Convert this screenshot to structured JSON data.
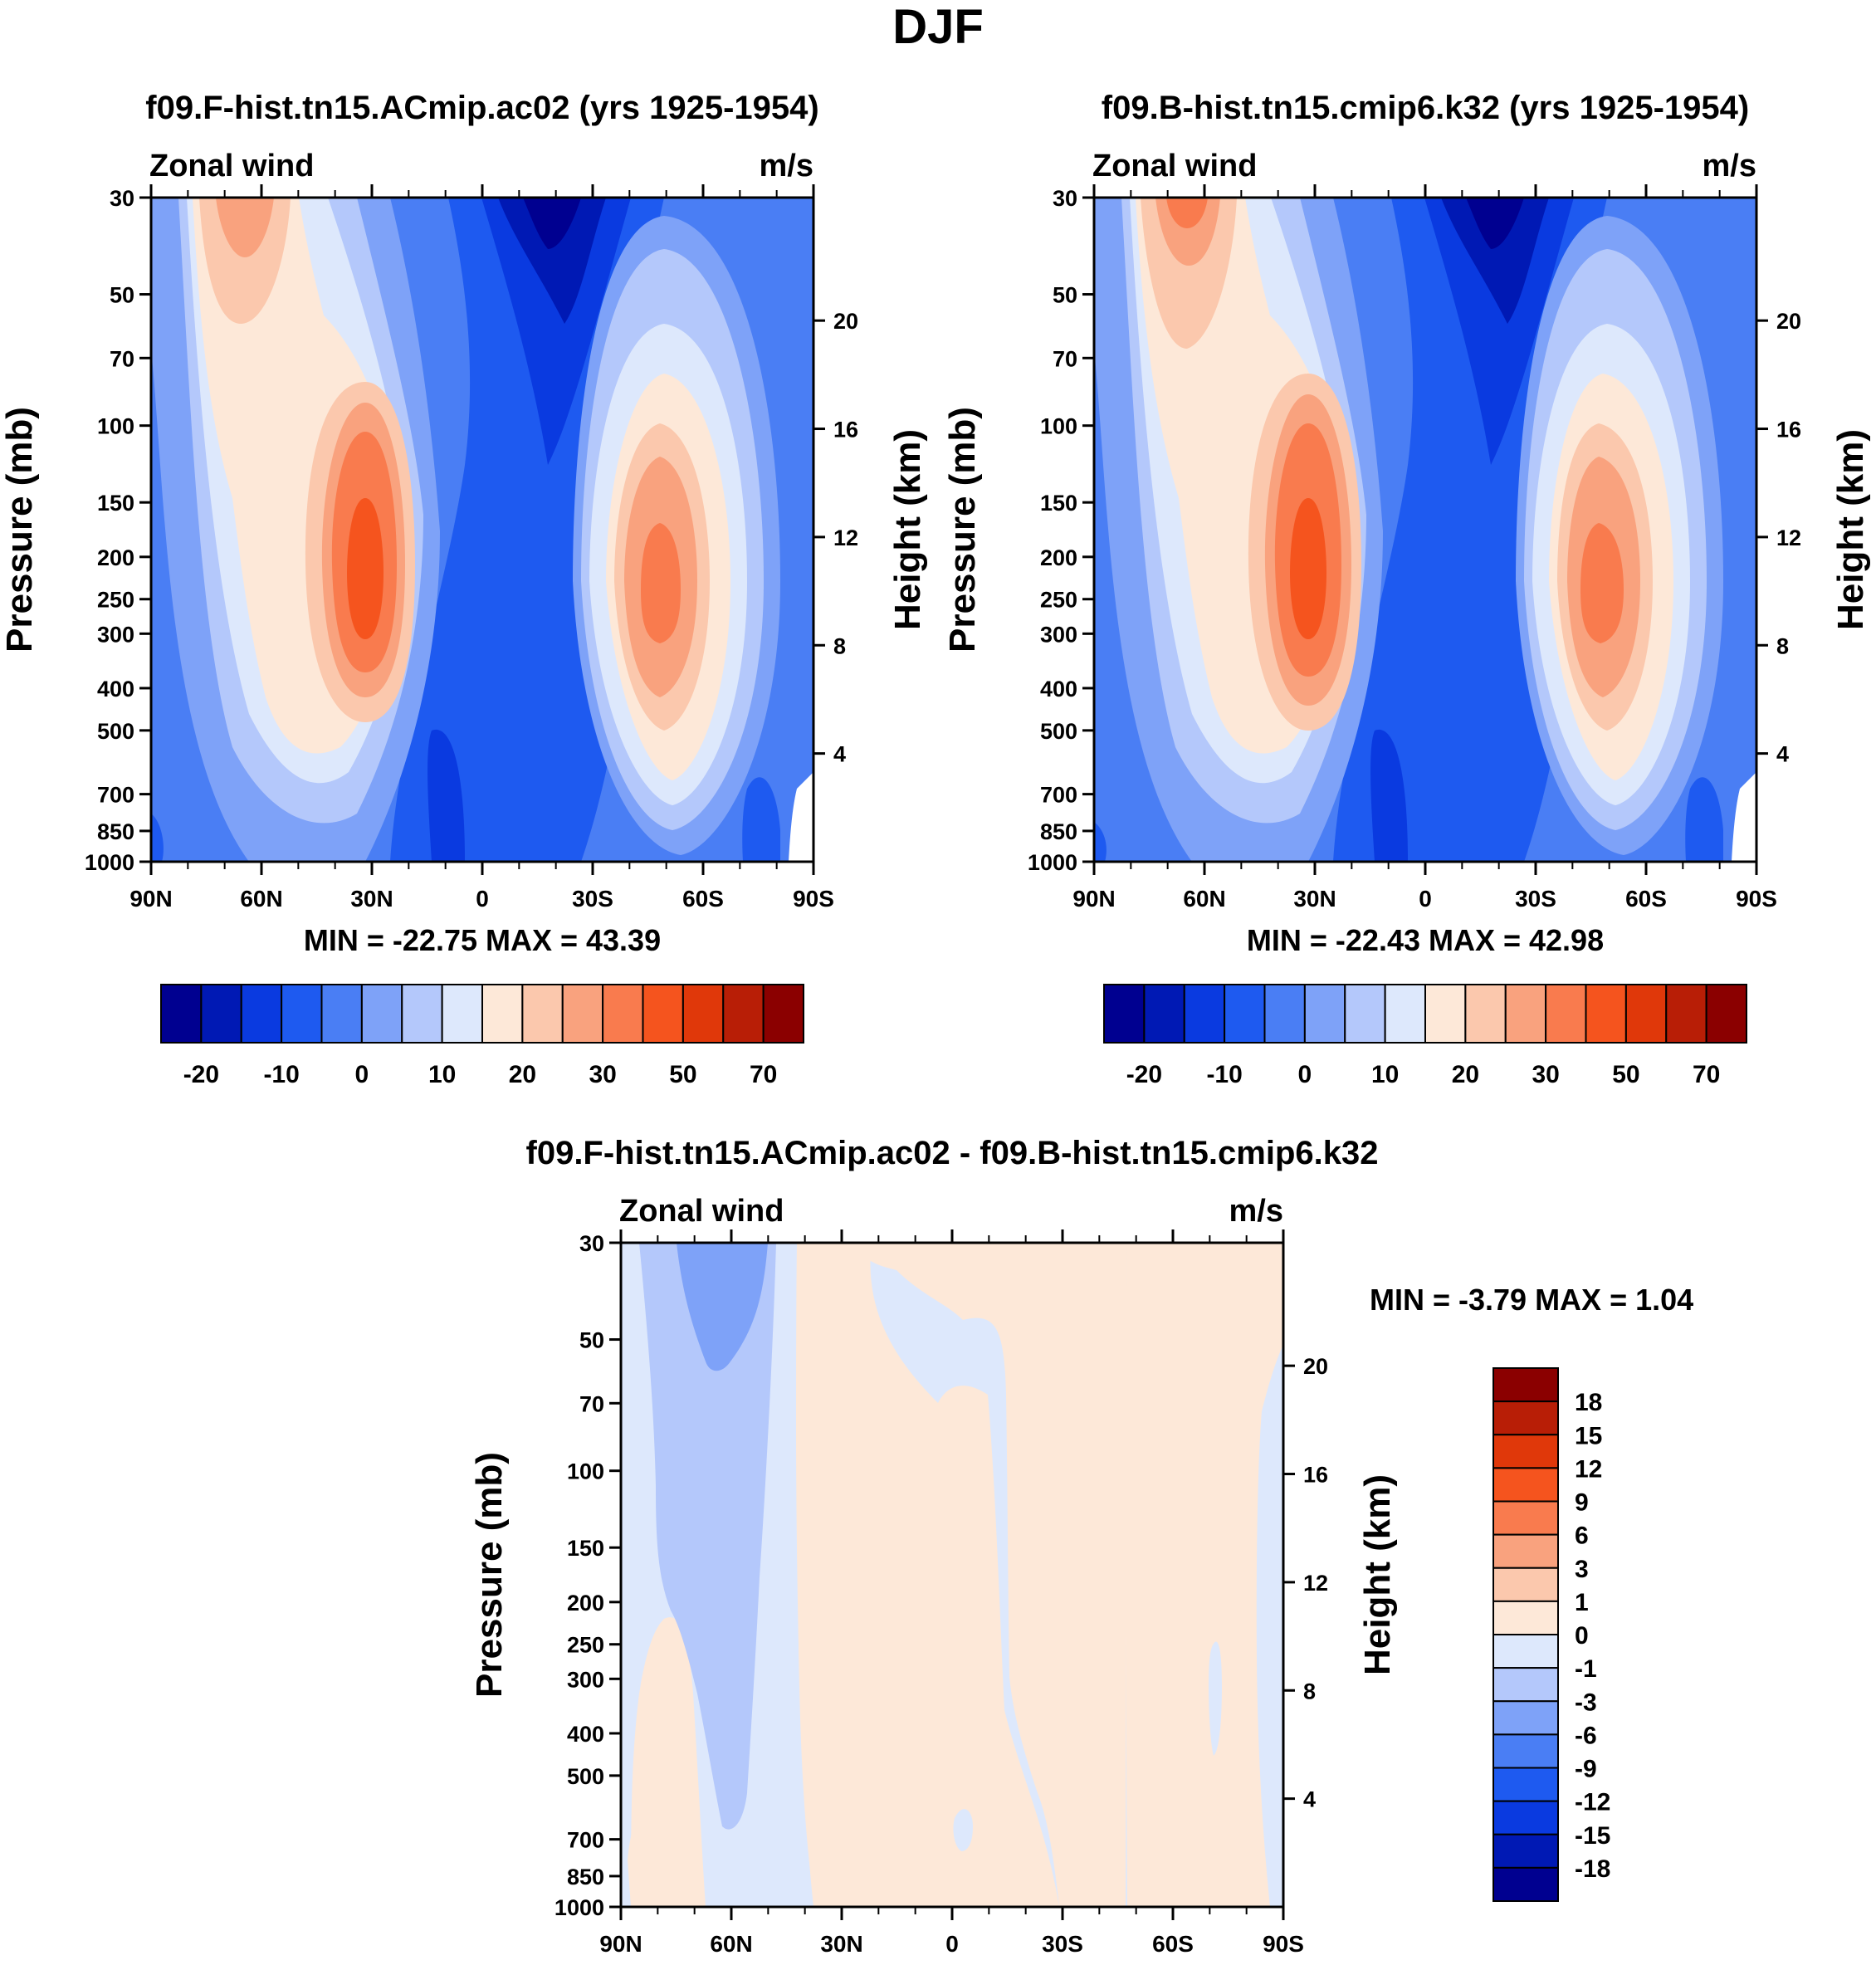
{
  "page_title": "DJF",
  "colors": {
    "main_levels": [
      "#000090",
      "#0019b4",
      "#0a3ae0",
      "#1e5af0",
      "#4a7ef4",
      "#7ea2f8",
      "#b4c8fb",
      "#dde8fc",
      "#fde8d8",
      "#fbc8ad",
      "#f9a27e",
      "#f97b4e",
      "#f5541e",
      "#e0380a",
      "#b81e06",
      "#8b0000"
    ],
    "diff_levels": [
      "#000090",
      "#0019b4",
      "#0a3ae0",
      "#1e5af0",
      "#4a7ef4",
      "#7ea2f8",
      "#b4c8fb",
      "#dde8fc",
      "#fde8d8",
      "#fbc8ad",
      "#f9a27e",
      "#f97b4e",
      "#f5541e",
      "#e0380a",
      "#b81e06",
      "#8b0000"
    ]
  },
  "panels": {
    "left": {
      "title": "f09.F-hist.tn15.ACmip.ac02 (yrs 1925-1954)",
      "left_label": "Zonal wind",
      "right_label": "m/s",
      "y_title": "Pressure (mb)",
      "y2_title": "Height (km)",
      "stats": "MIN = -22.75  MAX =  43.39"
    },
    "right": {
      "title": "f09.B-hist.tn15.cmip6.k32 (yrs 1925-1954)",
      "left_label": "Zonal wind",
      "right_label": "m/s",
      "y_title": "Pressure (mb)",
      "y2_title": "Height (km)",
      "stats": "MIN = -22.43  MAX =  42.98"
    },
    "diff": {
      "title": "f09.F-hist.tn15.ACmip.ac02 - f09.B-hist.tn15.cmip6.k32",
      "left_label": "Zonal wind",
      "right_label": "m/s",
      "y_title": "Pressure (mb)",
      "y2_title": "Height (km)",
      "stats": "MIN =  -3.79  MAX =   1.04"
    }
  },
  "chart_data": [
    {
      "type": "heatmap",
      "title": "f09.F-hist.tn15.ACmip.ac02 (yrs 1925-1954)",
      "variable": "Zonal wind",
      "units": "m/s",
      "xlabel": "",
      "ylabel": "Pressure (mb)",
      "y2label": "Height (km)",
      "x_ticks": [
        "90N",
        "60N",
        "30N",
        "0",
        "30S",
        "60S",
        "90S"
      ],
      "y_ticks": [
        "30",
        "50",
        "70",
        "100",
        "150",
        "200",
        "250",
        "300",
        "400",
        "500",
        "700",
        "850",
        "1000"
      ],
      "y_tick_values": [
        30,
        50,
        70,
        100,
        150,
        200,
        250,
        300,
        400,
        500,
        700,
        850,
        1000
      ],
      "y2_ticks": [
        "20",
        "16",
        "12",
        "8",
        "4"
      ],
      "y2_tick_values": [
        20,
        16,
        12,
        8,
        4
      ],
      "ylim": [
        1000,
        30
      ],
      "xlim": [
        90,
        -90
      ],
      "min": -22.75,
      "max": 43.39,
      "jets": [
        {
          "lat": 30,
          "p": 200,
          "peak": 43.39
        },
        {
          "lat": -47,
          "p": 230,
          "peak": 32
        }
      ],
      "colorbar_labels": [
        "-20",
        "-10",
        "0",
        "10",
        "20",
        "30",
        "50",
        "70"
      ]
    },
    {
      "type": "heatmap",
      "title": "f09.B-hist.tn15.cmip6.k32 (yrs 1925-1954)",
      "variable": "Zonal wind",
      "units": "m/s",
      "xlabel": "",
      "ylabel": "Pressure (mb)",
      "y2label": "Height (km)",
      "x_ticks": [
        "90N",
        "60N",
        "30N",
        "0",
        "30S",
        "60S",
        "90S"
      ],
      "y_ticks": [
        "30",
        "50",
        "70",
        "100",
        "150",
        "200",
        "250",
        "300",
        "400",
        "500",
        "700",
        "850",
        "1000"
      ],
      "y_tick_values": [
        30,
        50,
        70,
        100,
        150,
        200,
        250,
        300,
        400,
        500,
        700,
        850,
        1000
      ],
      "y2_ticks": [
        "20",
        "16",
        "12",
        "8",
        "4"
      ],
      "y2_tick_values": [
        20,
        16,
        12,
        8,
        4
      ],
      "ylim": [
        1000,
        30
      ],
      "xlim": [
        90,
        -90
      ],
      "min": -22.43,
      "max": 42.98,
      "jets": [
        {
          "lat": 30,
          "p": 200,
          "peak": 42.98
        },
        {
          "lat": -47,
          "p": 230,
          "peak": 32
        }
      ],
      "colorbar_labels": [
        "-20",
        "-10",
        "0",
        "10",
        "20",
        "30",
        "50",
        "70"
      ]
    },
    {
      "type": "heatmap",
      "title": "f09.F-hist.tn15.ACmip.ac02 - f09.B-hist.tn15.cmip6.k32",
      "variable": "Zonal wind",
      "units": "m/s",
      "xlabel": "",
      "ylabel": "Pressure (mb)",
      "y2label": "Height (km)",
      "x_ticks": [
        "90N",
        "60N",
        "30N",
        "0",
        "30S",
        "60S",
        "90S"
      ],
      "y_ticks": [
        "30",
        "50",
        "70",
        "100",
        "150",
        "200",
        "250",
        "300",
        "400",
        "500",
        "700",
        "850",
        "1000"
      ],
      "y_tick_values": [
        30,
        50,
        70,
        100,
        150,
        200,
        250,
        300,
        400,
        500,
        700,
        850,
        1000
      ],
      "y2_ticks": [
        "20",
        "16",
        "12",
        "8",
        "4"
      ],
      "y2_tick_values": [
        20,
        16,
        12,
        8,
        4
      ],
      "ylim": [
        1000,
        30
      ],
      "xlim": [
        90,
        -90
      ],
      "min": -3.79,
      "max": 1.04,
      "colorbar_labels": [
        "18",
        "15",
        "12",
        "9",
        "6",
        "3",
        "1",
        "0",
        "-1",
        "-3",
        "-6",
        "-9",
        "-12",
        "-15",
        "-18"
      ]
    }
  ]
}
